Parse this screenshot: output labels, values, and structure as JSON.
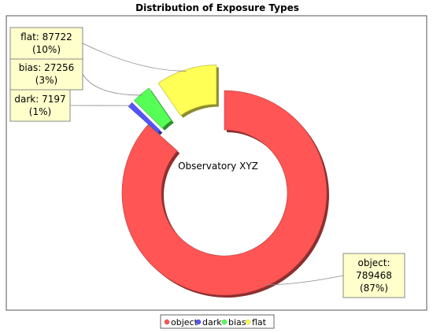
{
  "chart_data": {
    "type": "pie",
    "title": "Distribution of Exposure Types",
    "center_label": "Observatory XYZ",
    "slices": [
      {
        "name": "object",
        "value": 789468,
        "percent_label": "(87%)",
        "color": "#ff5555"
      },
      {
        "name": "dark",
        "value": 7197,
        "percent_label": "(1%)",
        "color": "#5555ff"
      },
      {
        "name": "bias",
        "value": 27256,
        "percent_label": "(3%)",
        "color": "#55ff55"
      },
      {
        "name": "flat",
        "value": 87722,
        "percent_label": "(10%)",
        "color": "#ffff55"
      }
    ],
    "legend": {
      "position": "bottom",
      "items": [
        "object",
        "dark",
        "bias",
        "flat"
      ]
    },
    "callout_style": {
      "box_fill": "#ffffcc",
      "box_stroke": "#888888"
    },
    "donut": true,
    "exploded": true
  }
}
